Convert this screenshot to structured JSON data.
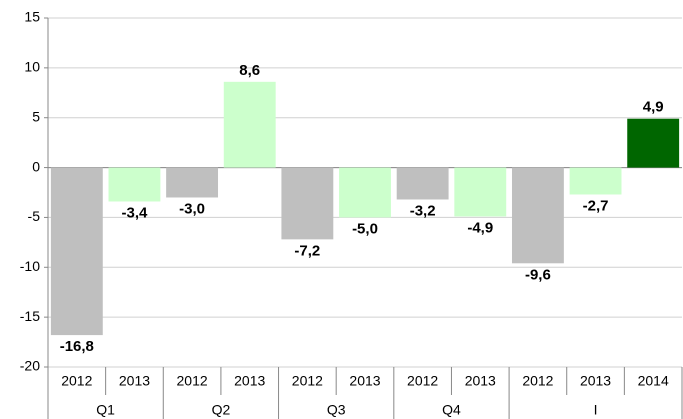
{
  "chart_data": {
    "type": "bar",
    "groups": [
      {
        "label": "Q1",
        "categories": [
          "2012",
          "2013"
        ],
        "values": [
          -16.8,
          -3.4
        ],
        "value_labels": [
          "-16,8",
          "-3,4"
        ],
        "colors": [
          "#bfbfbf",
          "#ccffcc"
        ]
      },
      {
        "label": "Q2",
        "categories": [
          "2012",
          "2013"
        ],
        "values": [
          -3.0,
          8.6
        ],
        "value_labels": [
          "-3,0",
          "8,6"
        ],
        "colors": [
          "#bfbfbf",
          "#ccffcc"
        ]
      },
      {
        "label": "Q3",
        "categories": [
          "2012",
          "2013"
        ],
        "values": [
          -7.2,
          -5.0
        ],
        "value_labels": [
          "-7,2",
          "-5,0"
        ],
        "colors": [
          "#bfbfbf",
          "#ccffcc"
        ]
      },
      {
        "label": "Q4",
        "categories": [
          "2012",
          "2013"
        ],
        "values": [
          -3.2,
          -4.9
        ],
        "value_labels": [
          "-3,2",
          "-4,9"
        ],
        "colors": [
          "#bfbfbf",
          "#ccffcc"
        ]
      },
      {
        "label": "I",
        "categories": [
          "2012",
          "2013",
          "2014"
        ],
        "values": [
          -9.6,
          -2.7,
          4.9
        ],
        "value_labels": [
          "-9,6",
          "-2,7",
          "4,9"
        ],
        "colors": [
          "#bfbfbf",
          "#ccffcc",
          "#006600"
        ]
      }
    ],
    "ylim": [
      -20,
      15
    ],
    "yticks": [
      -20,
      -15,
      -10,
      -5,
      0,
      5,
      10,
      15
    ],
    "grid": true
  }
}
